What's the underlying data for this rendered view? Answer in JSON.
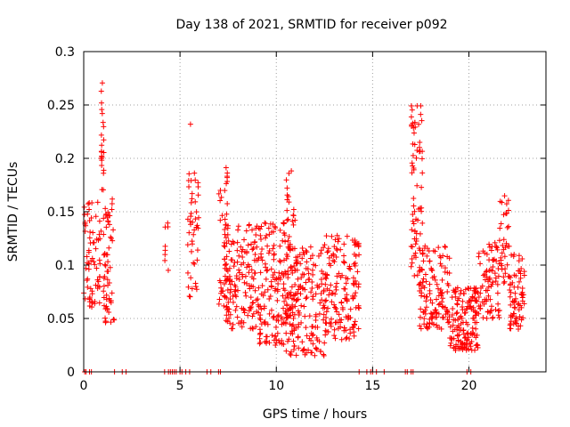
{
  "chart_data": {
    "type": "scatter",
    "title": "Day 138 of 2021, SRMTID for receiver p092",
    "xlabel": "GPS time / hours",
    "ylabel": "SRMTID / TECUs",
    "xlim": [
      0,
      24
    ],
    "ylim": [
      0,
      0.3
    ],
    "x_ticks": [
      0,
      5,
      10,
      15,
      20
    ],
    "x_tick_labels": [
      "0",
      "5",
      "10",
      "15",
      "20"
    ],
    "y_ticks": [
      0,
      0.05,
      0.1,
      0.15,
      0.2,
      0.25,
      0.3
    ],
    "y_tick_labels": [
      "0",
      "0.05",
      "0.1",
      "0.15",
      "0.2",
      "0.25",
      "0.3"
    ],
    "grid": true,
    "marker": "+",
    "series": [
      {
        "name": "SRMTID",
        "color": "#ff0000",
        "clusters": [
          {
            "x": [
              0.0,
              0.9
            ],
            "y": [
              0.06,
              0.16
            ],
            "n": 70
          },
          {
            "x": [
              0.9,
              1.05
            ],
            "y": [
              0.17,
              0.275
            ],
            "n": 22
          },
          {
            "x": [
              1.0,
              1.6
            ],
            "y": [
              0.045,
              0.165
            ],
            "n": 60
          },
          {
            "x": [
              4.2,
              4.4
            ],
            "y": [
              0.095,
              0.14
            ],
            "n": 8
          },
          {
            "x": [
              5.4,
              6.0
            ],
            "y": [
              0.07,
              0.19
            ],
            "n": 45
          },
          {
            "x": [
              5.5,
              5.6
            ],
            "y": [
              0.232,
              0.232
            ],
            "n": 1
          },
          {
            "x": [
              7.0,
              7.5
            ],
            "y": [
              0.06,
              0.195
            ],
            "n": 40
          },
          {
            "x": [
              7.3,
              9.0
            ],
            "y": [
              0.04,
              0.14
            ],
            "n": 150
          },
          {
            "x": [
              9.0,
              10.5
            ],
            "y": [
              0.025,
              0.14
            ],
            "n": 150
          },
          {
            "x": [
              10.5,
              11.0
            ],
            "y": [
              0.05,
              0.19
            ],
            "n": 40
          },
          {
            "x": [
              10.5,
              12.5
            ],
            "y": [
              0.015,
              0.12
            ],
            "n": 180
          },
          {
            "x": [
              12.5,
              14.3
            ],
            "y": [
              0.03,
              0.13
            ],
            "n": 160
          },
          {
            "x": [
              17.0,
              17.6
            ],
            "y": [
              0.09,
              0.25
            ],
            "n": 70
          },
          {
            "x": [
              17.4,
              19.0
            ],
            "y": [
              0.04,
              0.12
            ],
            "n": 130
          },
          {
            "x": [
              19.0,
              20.5
            ],
            "y": [
              0.02,
              0.08
            ],
            "n": 150
          },
          {
            "x": [
              20.5,
              21.6
            ],
            "y": [
              0.05,
              0.125
            ],
            "n": 80
          },
          {
            "x": [
              21.6,
              22.1
            ],
            "y": [
              0.08,
              0.165
            ],
            "n": 35
          },
          {
            "x": [
              22.1,
              22.9
            ],
            "y": [
              0.04,
              0.11
            ],
            "n": 70
          }
        ],
        "zeros": [
          0.05,
          0.12,
          0.3,
          0.4,
          1.6,
          2.0,
          2.2,
          4.2,
          4.4,
          4.5,
          4.6,
          4.7,
          4.8,
          5.0,
          5.1,
          5.3,
          5.5,
          6.4,
          6.6,
          7.0,
          7.1,
          14.3,
          14.7,
          14.9,
          15.0,
          15.2,
          15.6,
          16.7,
          16.8,
          17.0,
          17.1,
          19.9,
          20.1
        ]
      }
    ]
  }
}
